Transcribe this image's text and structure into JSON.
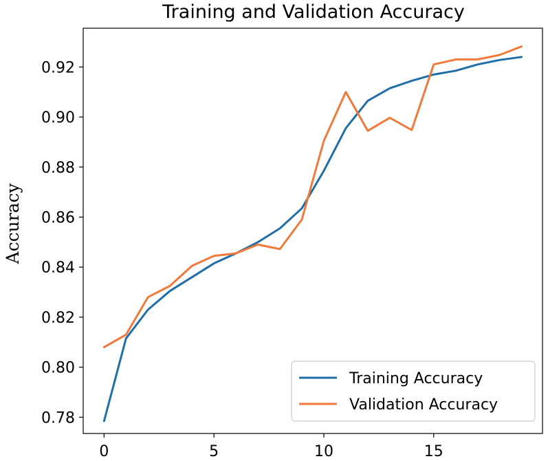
{
  "chart_data": {
    "type": "line",
    "title": "Training and Validation Accuracy",
    "xlabel": "",
    "ylabel": "Accuracy",
    "xlim": [
      -0.95,
      19.95
    ],
    "ylim": [
      0.7735,
      0.9355
    ],
    "x_ticks": [
      0,
      5,
      10,
      15
    ],
    "y_ticks": [
      0.78,
      0.8,
      0.82,
      0.84,
      0.86,
      0.88,
      0.9,
      0.92
    ],
    "y_tick_labels": [
      "0.78",
      "0.80",
      "0.82",
      "0.84",
      "0.86",
      "0.88",
      "0.90",
      "0.92"
    ],
    "x": [
      0,
      1,
      2,
      3,
      4,
      5,
      6,
      7,
      8,
      9,
      10,
      11,
      12,
      13,
      14,
      15,
      16,
      17,
      18,
      19
    ],
    "series": [
      {
        "name": "Training Accuracy",
        "color": "#1f6ea8",
        "values": [
          0.7785,
          0.8115,
          0.823,
          0.8305,
          0.836,
          0.8415,
          0.8455,
          0.85,
          0.8555,
          0.8635,
          0.8785,
          0.8955,
          0.9065,
          0.9115,
          0.9145,
          0.917,
          0.9185,
          0.921,
          0.9228,
          0.924
        ]
      },
      {
        "name": "Validation Accuracy",
        "color": "#f07a3a",
        "values": [
          0.808,
          0.813,
          0.828,
          0.8325,
          0.8405,
          0.8445,
          0.8455,
          0.849,
          0.8472,
          0.859,
          0.8905,
          0.91,
          0.8945,
          0.8997,
          0.8948,
          0.921,
          0.923,
          0.923,
          0.9248,
          0.9282
        ]
      }
    ],
    "legend": {
      "position": "bottom-right"
    },
    "grid": false
  }
}
